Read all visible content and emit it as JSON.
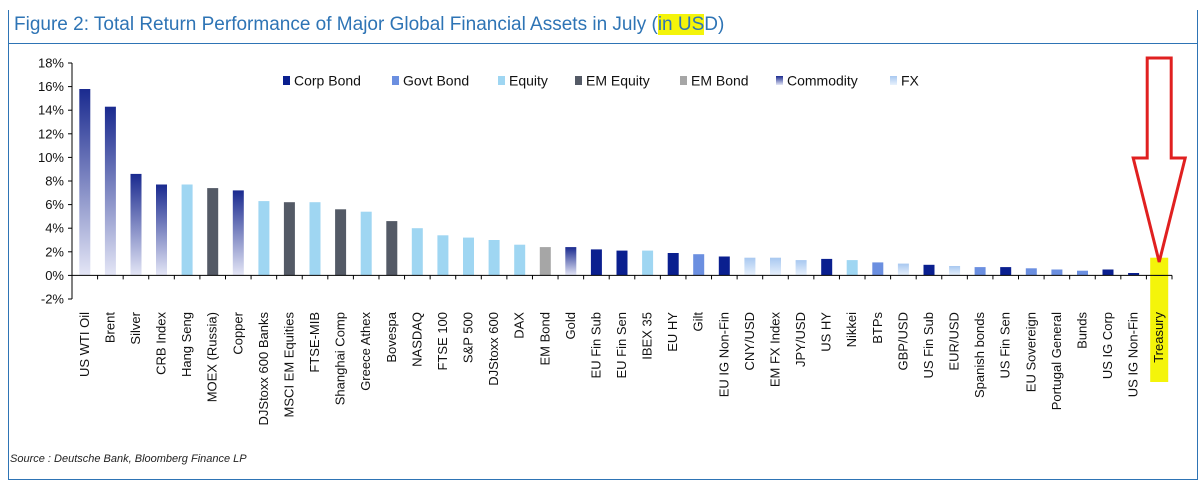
{
  "title": {
    "prefix": "Figure 2: Total Return Performance of Major Global Financial Assets in July (",
    "highlight": "in US",
    "suffix": "D)"
  },
  "source": "Source : Deutsche Bank, Bloomberg Finance LP",
  "colors": {
    "corp_bond": "#0a1f8f",
    "govt_bond": "#6b8fe0",
    "equity": "#9fd6f2",
    "em_equity": "#545a66",
    "em_bond": "#a6a6a6",
    "commodity": "#1a2a8f",
    "fx": "#a8c8f0",
    "annotation_arrow": "#e02020",
    "annotation_highlight": "#f4f40a",
    "title": "#2e74b5"
  },
  "chart_data": {
    "type": "bar",
    "title": "Figure 2: Total Return Performance of Major Global Financial Assets in July (in USD)",
    "xlabel": "",
    "ylabel": "",
    "ylim": [
      -2,
      18
    ],
    "yticks": [
      -2,
      0,
      2,
      4,
      6,
      8,
      10,
      12,
      14,
      16,
      18
    ],
    "ytick_labels": [
      "-2%",
      "0%",
      "2%",
      "4%",
      "6%",
      "8%",
      "10%",
      "12%",
      "14%",
      "16%",
      "18%"
    ],
    "grid": false,
    "legend_position": "top",
    "legend": [
      {
        "name": "Corp Bond",
        "key": "corp"
      },
      {
        "name": "Govt Bond",
        "key": "govt"
      },
      {
        "name": "Equity",
        "key": "equity"
      },
      {
        "name": "EM Equity",
        "key": "emeq"
      },
      {
        "name": "EM Bond",
        "key": "embond"
      },
      {
        "name": "Commodity",
        "key": "comm"
      },
      {
        "name": "FX",
        "key": "fx"
      }
    ],
    "categories": [
      "US WTI Oil",
      "Brent",
      "Silver",
      "CRB Index",
      "Hang Seng",
      "MOEX (Russia)",
      "Copper",
      "DJStoxx 600 Banks",
      "MSCI EM Equities",
      "FTSE-MIB",
      "Shanghai Comp",
      "Greece Athex",
      "Bovespa",
      "NASDAQ",
      "FTSE 100",
      "S&P 500",
      "DJStoxx 600",
      "DAX",
      "EM Bond",
      "Gold",
      "EU Fin Sub",
      "EU Fin Sen",
      "IBEX 35",
      "EU HY",
      "Gilt",
      "EU IG Non-Fin",
      "CNY/USD",
      "EM FX Index",
      "JPY/USD",
      "US HY",
      "Nikkei",
      "BTPs",
      "GBP/USD",
      "US Fin Sub",
      "EUR/USD",
      "Spanish bonds",
      "US Fin Sen",
      "EU Sovereign",
      "Portugal General",
      "Bunds",
      "US IG Corp",
      "US IG Non-Fin",
      "Treasury"
    ],
    "values": [
      15.8,
      14.3,
      8.6,
      7.7,
      7.7,
      7.4,
      7.2,
      6.3,
      6.2,
      6.2,
      5.6,
      5.4,
      4.6,
      4.0,
      3.4,
      3.2,
      3.0,
      2.6,
      2.4,
      2.4,
      2.2,
      2.1,
      2.1,
      1.9,
      1.8,
      1.6,
      1.5,
      1.5,
      1.3,
      1.4,
      1.3,
      1.1,
      1.0,
      0.9,
      0.8,
      0.7,
      0.7,
      0.6,
      0.5,
      0.4,
      0.5,
      0.2,
      0.0
    ],
    "asset_class": [
      "comm",
      "comm",
      "comm",
      "comm",
      "equity",
      "emeq",
      "comm",
      "equity",
      "emeq",
      "equity",
      "emeq",
      "equity",
      "emeq",
      "equity",
      "equity",
      "equity",
      "equity",
      "equity",
      "embond",
      "comm",
      "corp",
      "corp",
      "equity",
      "corp",
      "govt",
      "corp",
      "fx",
      "fx",
      "fx",
      "corp",
      "equity",
      "govt",
      "fx",
      "corp",
      "fx",
      "govt",
      "corp",
      "govt",
      "govt",
      "govt",
      "corp",
      "corp",
      "govt"
    ],
    "highlighted_category": "Treasury"
  }
}
